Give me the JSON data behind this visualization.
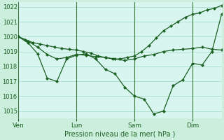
{
  "background_color": "#cceedd",
  "plot_bg": "#d8f5f0",
  "grid_color": "#aaddcc",
  "line_color": "#1a6020",
  "marker_color": "#1a6020",
  "xlabel": "Pression niveau de la mer( hPa )",
  "ylim": [
    1014.5,
    1022.3
  ],
  "yticks": [
    1015,
    1016,
    1017,
    1018,
    1019,
    1020,
    1021,
    1022
  ],
  "xtick_labels": [
    "Ven",
    "Lun",
    "Sam",
    "Dim"
  ],
  "xtick_positions": [
    0,
    48,
    96,
    144
  ],
  "total_points": 168,
  "series": [
    {
      "x": [
        0,
        6,
        12,
        18,
        24,
        30,
        36,
        42,
        48,
        54,
        60,
        66,
        72,
        78,
        84,
        90,
        96,
        102,
        108,
        114,
        120,
        126,
        132,
        138,
        144,
        150,
        156,
        162,
        168
      ],
      "y": [
        1020.0,
        1019.8,
        1019.6,
        1019.5,
        1019.4,
        1019.3,
        1019.2,
        1019.15,
        1019.1,
        1019.0,
        1018.9,
        1018.7,
        1018.6,
        1018.5,
        1018.5,
        1018.6,
        1018.7,
        1019.0,
        1019.4,
        1019.9,
        1020.4,
        1020.7,
        1021.0,
        1021.3,
        1021.5,
        1021.6,
        1021.8,
        1021.9,
        1022.1
      ]
    },
    {
      "x": [
        0,
        8,
        16,
        24,
        32,
        40,
        48,
        56,
        64,
        72,
        80,
        88,
        96,
        104,
        112,
        120,
        128,
        136,
        144,
        152,
        160,
        168
      ],
      "y": [
        1020.0,
        1019.7,
        1019.3,
        1018.8,
        1018.5,
        1018.6,
        1018.8,
        1018.75,
        1018.65,
        1018.6,
        1018.5,
        1018.4,
        1018.5,
        1018.7,
        1018.8,
        1019.0,
        1019.1,
        1019.15,
        1019.2,
        1019.3,
        1019.15,
        1019.1
      ]
    },
    {
      "x": [
        0,
        8,
        16,
        24,
        32,
        40,
        48,
        56,
        64,
        72,
        80,
        88,
        96,
        104,
        112,
        120,
        128,
        136,
        144,
        152,
        160,
        168
      ],
      "y": [
        1020.0,
        1019.6,
        1018.85,
        1017.2,
        1017.0,
        1018.5,
        1018.75,
        1018.85,
        1018.5,
        1017.8,
        1017.5,
        1016.6,
        1016.0,
        1015.8,
        1014.8,
        1015.0,
        1016.7,
        1017.1,
        1018.2,
        1018.1,
        1019.0,
        1021.5
      ]
    }
  ]
}
